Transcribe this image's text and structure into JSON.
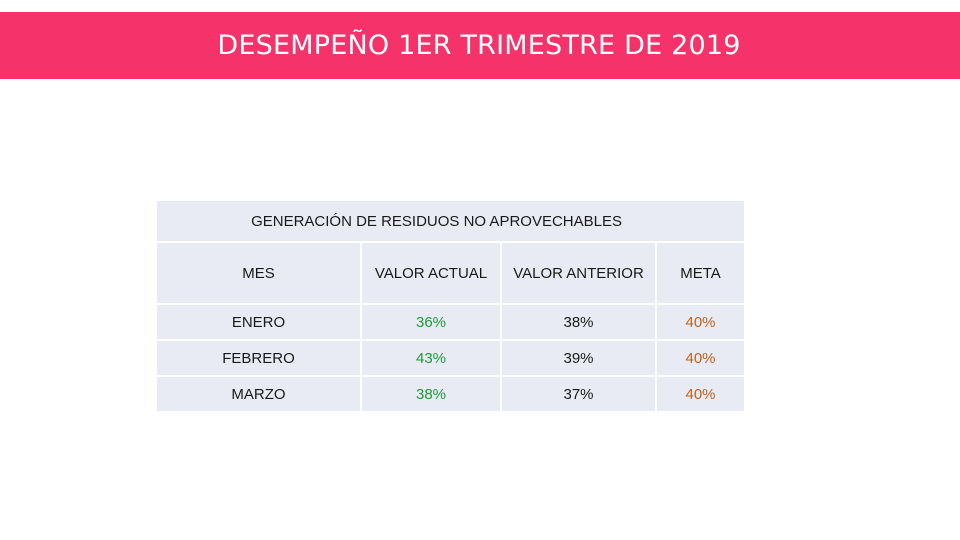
{
  "header": {
    "title": "DESEMPEÑO 1ER TRIMESTRE DE 2019",
    "banner_color": "#f5336a"
  },
  "table": {
    "title": "GENERACIÓN DE RESIDUOS NO APROVECHABLES",
    "columns": [
      "MES",
      "VALOR ACTUAL",
      "VALOR ANTERIOR",
      "META"
    ],
    "rows": [
      {
        "mes": "ENERO",
        "actual": "36%",
        "anterior": "38%",
        "meta": "40%"
      },
      {
        "mes": "FEBRERO",
        "actual": "43%",
        "anterior": "39%",
        "meta": "40%"
      },
      {
        "mes": "MARZO",
        "actual": "38%",
        "anterior": "37%",
        "meta": "40%"
      }
    ],
    "colors": {
      "cell_background": "#e8ebf4",
      "actual_text": "#1e9a3c",
      "meta_text": "#c0621b"
    }
  }
}
